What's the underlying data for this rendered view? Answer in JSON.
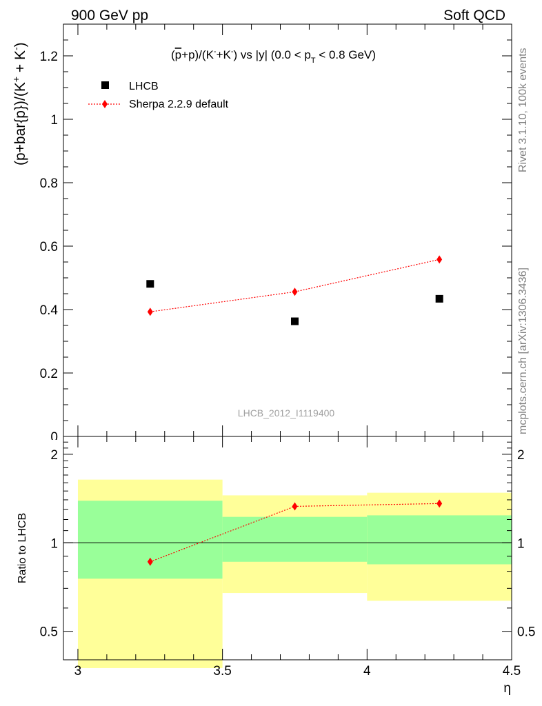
{
  "header": {
    "left": "900 GeV pp",
    "right": "Soft QCD"
  },
  "side_labels": {
    "rivet": "Rivet 3.1.10,  100k events",
    "mcplots": "mcplots.cern.ch [arXiv:1306.3436]"
  },
  "chart_data": [
    {
      "type": "scatter",
      "title_parts": {
        "t1": "(",
        "pbar": "p",
        "t2": "+p)/(K",
        "s1": "-",
        "t3": "+K",
        "s2": "-",
        "t4": ") vs |y| (0.0 < p",
        "s3": "T",
        "t5": " < 0.8 GeV)"
      },
      "ylabel_parts": {
        "a": "(p+bar{p})/(K",
        "s1": "+",
        "b": " + K",
        "s2": "-",
        "c": ")"
      },
      "xlim": [
        2.95,
        4.5
      ],
      "ylim": [
        0,
        1.3
      ],
      "y_ticks": [
        "0.2",
        "0.4",
        "0.6",
        "0.8",
        "1",
        "1.2"
      ],
      "y_zero_label": "0",
      "watermark": "LHCB_2012_I1119400",
      "legend": {
        "position": "top-left",
        "data_label": "LHCB",
        "mc_label": "Sherpa 2.2.9 default"
      },
      "series": [
        {
          "name": "LHCB",
          "marker": "square",
          "color": "#000000",
          "x": [
            3.25,
            3.75,
            4.25
          ],
          "y": [
            0.481,
            0.363,
            0.434
          ]
        },
        {
          "name": "Sherpa 2.2.9 default",
          "marker": "diamond",
          "color": "#ff0000",
          "line": "dotted",
          "x": [
            3.25,
            3.75,
            4.25
          ],
          "y": [
            0.393,
            0.456,
            0.558
          ]
        }
      ]
    },
    {
      "type": "line",
      "ylabel": "Ratio to LHCB",
      "xlabel": "η",
      "xlim": [
        2.95,
        4.5
      ],
      "ylim": [
        0.4,
        2.3
      ],
      "y_scale": "log",
      "x_ticks": [
        "3",
        "3.5",
        "4",
        "4.5"
      ],
      "y_ticks": [
        "0.5",
        "1",
        "2"
      ],
      "reference": 1.0,
      "bands": [
        {
          "x0": 3.0,
          "x1": 3.5,
          "inner": [
            0.755,
            1.39
          ],
          "outer": [
            0.375,
            1.64
          ]
        },
        {
          "x0": 3.5,
          "x1": 4.0,
          "inner": [
            0.862,
            1.225
          ],
          "outer": [
            0.675,
            1.45
          ]
        },
        {
          "x0": 4.0,
          "x1": 4.5,
          "inner": [
            0.845,
            1.24
          ],
          "outer": [
            0.635,
            1.48
          ]
        }
      ],
      "band_colors": {
        "inner": "#99ff99",
        "outer": "#ffff99"
      },
      "series": [
        {
          "name": "Sherpa 2.2.9 default",
          "color": "#ff0000",
          "x": [
            3.25,
            3.75,
            4.25
          ],
          "y": [
            0.862,
            1.33,
            1.36
          ]
        }
      ]
    }
  ]
}
